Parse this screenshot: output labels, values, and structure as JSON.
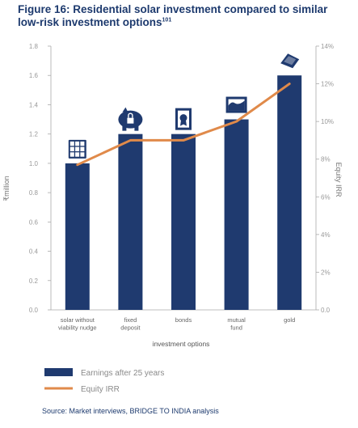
{
  "figure": {
    "title": "Figure 16: Residential solar investment compared to similar low-risk investment options",
    "title_sup": "101",
    "source": "Source: Market interviews, BRIDGE TO INDIA analysis"
  },
  "chart_data": {
    "type": "bar",
    "categories": [
      [
        "solar without",
        "viability nudge"
      ],
      [
        "fixed",
        "deposit"
      ],
      [
        "bonds"
      ],
      [
        "mutual",
        "fund"
      ],
      [
        "gold"
      ]
    ],
    "category_icons": [
      "solar-panel-icon",
      "piggy-bank-lock-icon",
      "certificate-icon",
      "framed-chart-icon",
      "gold-bar-icon"
    ],
    "series": [
      {
        "name": "Earnings after 25 years",
        "type": "bar",
        "axis": "left",
        "color": "#1f3a6f",
        "values": [
          1.0,
          1.2,
          1.2,
          1.3,
          1.6
        ]
      },
      {
        "name": "Equity IRR",
        "type": "line",
        "axis": "right",
        "color": "#e08a4a",
        "values": [
          7.7,
          9.0,
          9.0,
          10.0,
          12.0
        ]
      }
    ],
    "xlabel": "investment options",
    "ylabel": "₹million",
    "y2label": "Equity IRR",
    "ylim": [
      0,
      1.8
    ],
    "y_ticks": [
      "0.0",
      "0.2",
      "0.4",
      "0.6",
      "0.8",
      "1.0",
      "1.2",
      "1.4",
      "1.6",
      "1.8"
    ],
    "y2lim": [
      0,
      14
    ],
    "y2_ticks": [
      "0.0",
      "2%",
      "4%",
      "6%",
      "8%",
      "10%",
      "12%",
      "14%"
    ],
    "grid": false,
    "legend_position": "bottom-left"
  }
}
